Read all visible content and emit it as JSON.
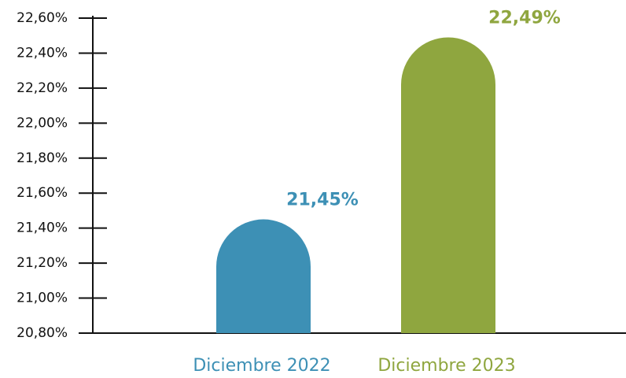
{
  "chart_data": {
    "type": "bar",
    "categories": [
      "Diciembre 2022",
      "Diciembre 2023"
    ],
    "values": [
      21.45,
      22.49
    ],
    "value_labels": [
      "21,45%",
      "22,49%"
    ],
    "colors": [
      "#3d90b5",
      "#8fa63f"
    ],
    "ylim": [
      20.8,
      22.6
    ],
    "yticks": [
      {
        "value": 20.8,
        "label": "20,80%"
      },
      {
        "value": 21.0,
        "label": "21,00%"
      },
      {
        "value": 21.2,
        "label": "21,20%"
      },
      {
        "value": 21.4,
        "label": "21,40%"
      },
      {
        "value": 21.6,
        "label": "21,60%"
      },
      {
        "value": 21.8,
        "label": "21,80%"
      },
      {
        "value": 22.0,
        "label": "22,00%"
      },
      {
        "value": 22.2,
        "label": "22,20%"
      },
      {
        "value": 22.4,
        "label": "22,40%"
      },
      {
        "value": 22.6,
        "label": "22,60%"
      }
    ],
    "grid": false
  }
}
